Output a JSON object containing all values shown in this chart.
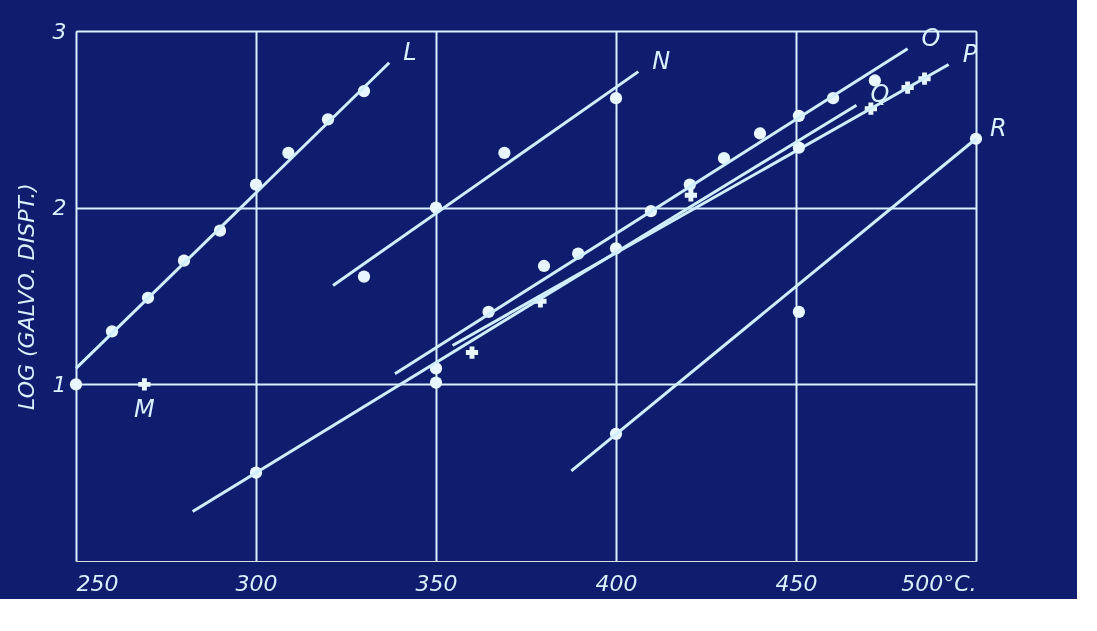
{
  "chart_data": {
    "type": "scatter",
    "ylabel": "LOG (GALVO. DISPT.)",
    "xlim": [
      250,
      500
    ],
    "ylim": [
      0,
      3
    ],
    "xticks": [
      250,
      300,
      350,
      400,
      450,
      {
        "value": 500,
        "label": "500°C."
      }
    ],
    "yticks": [
      1,
      2,
      3
    ],
    "grid": true,
    "series": [
      {
        "marker": "circle",
        "color": "#e8f6ff",
        "x": [
          250,
          260,
          270,
          280,
          290,
          300,
          309,
          320,
          330
        ],
        "values": [
          1.0,
          1.3,
          1.49,
          1.7,
          1.87,
          2.13,
          2.31,
          2.5,
          2.66
        ]
      },
      {
        "type": "line",
        "name": "L",
        "color": "#cfeeff",
        "x": [
          250,
          337
        ],
        "values": [
          1.09,
          2.82
        ]
      },
      {
        "marker": "cross",
        "name": "M",
        "color": "#e8f6ff",
        "x": [
          269
        ],
        "values": [
          1.0
        ]
      },
      {
        "marker": "circle",
        "color": "#e8f6ff",
        "x": [
          330,
          350,
          369,
          400
        ],
        "values": [
          1.61,
          2.0,
          2.31,
          2.62
        ]
      },
      {
        "type": "line",
        "name": "N",
        "color": "#cfeeff",
        "x": [
          321.4,
          406.2
        ],
        "values": [
          1.56,
          2.77
        ]
      },
      {
        "marker": "circle",
        "color": "#e8f6ff",
        "x": [
          350,
          364.6,
          380,
          389.5,
          409.7,
          420.5,
          430,
          440,
          450.8,
          460.3,
          471.9
        ],
        "values": [
          1.01,
          1.41,
          1.67,
          1.74,
          1.98,
          2.13,
          2.28,
          2.42,
          2.52,
          2.62,
          2.72
        ]
      },
      {
        "type": "line",
        "name": "O",
        "color": "#cfeeff",
        "x": [
          338.6,
          481
        ],
        "values": [
          1.06,
          2.9
        ]
      },
      {
        "marker": "cross",
        "color": "#e8f6ff",
        "x": [
          360,
          379,
          420.8,
          470.8,
          481,
          485.7
        ],
        "values": [
          1.18,
          1.47,
          2.07,
          2.56,
          2.68,
          2.73
        ]
      },
      {
        "type": "line",
        "name": "P",
        "color": "#cfeeff",
        "x": [
          354.6,
          492.4
        ],
        "values": [
          1.22,
          2.81
        ]
      },
      {
        "marker": "circle",
        "color": "#e8f6ff",
        "x": [
          300,
          350,
          400,
          450.8
        ],
        "values": [
          0.5,
          1.09,
          1.77,
          2.34
        ]
      },
      {
        "type": "line",
        "name": "Q",
        "color": "#cfeeff",
        "x": [
          282.4,
          466.8
        ],
        "values": [
          0.28,
          2.58
        ]
      },
      {
        "marker": "circle",
        "color": "#e8f6ff",
        "x": [
          400,
          450.8,
          500
        ],
        "values": [
          0.72,
          1.41,
          2.39
        ]
      },
      {
        "type": "line",
        "name": "R",
        "color": "#cfeeff",
        "x": [
          387.6,
          500
        ],
        "values": [
          0.51,
          2.39
        ]
      }
    ]
  }
}
